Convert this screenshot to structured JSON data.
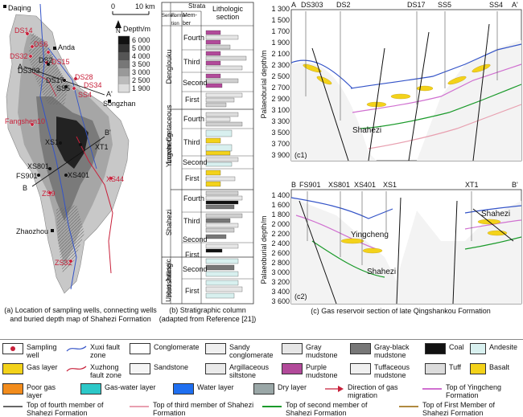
{
  "panel_a": {
    "wells": [
      "DS14",
      "DS6",
      "DS32",
      "DS2",
      "DS303",
      "DS15",
      "DS17",
      "DS28",
      "SS5",
      "DS34",
      "SS4",
      "Fangshen10",
      "XS1",
      "XT1",
      "XS801",
      "FS901",
      "XS401",
      "XS44",
      "ZS9",
      "ZS32"
    ],
    "towns": [
      "Daqing",
      "Anda",
      "Songzhan",
      "Zhaozhou"
    ],
    "section_ends": [
      "A",
      "A'",
      "B",
      "B'"
    ],
    "scale": {
      "zero": "0",
      "ten": "10 km"
    },
    "depth_legend": {
      "title": "Depth/m",
      "values": [
        "6 000",
        "5 000",
        "4 000",
        "3 500",
        "3 000",
        "2 500",
        "1 900"
      ]
    },
    "north_arrow": "N",
    "caption": "(a) Location of sampling wells, connecting wells and buried depth map of Shahezi Formation"
  },
  "panel_b": {
    "headers": {
      "strata": "Strata",
      "series": "Series",
      "formation": "Forma-tion",
      "member": "Mem-ber",
      "section": "Lithologic section"
    },
    "series": [
      "Lower Cretaceous",
      "Upper Jurassic"
    ],
    "formations": [
      "Denglouku",
      "Yingcheng",
      "Shahezi",
      "Huoshiling"
    ],
    "members": [
      "Fourth",
      "Third",
      "Second",
      "First",
      "Fourth",
      "Third",
      "Second",
      "First",
      "Fourth",
      "Third",
      "Second",
      "First",
      "Second",
      "First"
    ],
    "caption": "(b) Stratigraphic column (adapted from Reference [21])"
  },
  "panel_c": {
    "c1": {
      "wells": [
        "A",
        "DS303",
        "DS2",
        "DS17",
        "SS5",
        "SS4",
        "A'"
      ],
      "ylabel": "Palaeoburial depth/m",
      "yticks": [
        "1 300",
        "1 500",
        "1 700",
        "1 900",
        "2 100",
        "2 300",
        "2 500",
        "2 700",
        "2 900",
        "3 100",
        "3 300",
        "3 500",
        "3 700",
        "3 900"
      ],
      "label": "Shahezi",
      "tag": "(c1)"
    },
    "c2": {
      "wells": [
        "B",
        "FS901",
        "XS801",
        "XS401",
        "XS1",
        "XT1",
        "B'"
      ],
      "ylabel": "Palaeoburial depth/m",
      "yticks": [
        "1 400",
        "1 600",
        "1 800",
        "2 000",
        "2 200",
        "2 400",
        "2 600",
        "2 800",
        "3 000",
        "3 200",
        "3 400",
        "3 600"
      ],
      "labels": [
        "Shahezi",
        "Yingcheng",
        "Shahezi"
      ],
      "tag": "(c2)"
    },
    "caption": "(c) Gas reservoir section of late Qingshankou Formation"
  },
  "legend": {
    "items": [
      {
        "label": "Sampling well"
      },
      {
        "label": "Xuxi fault zone"
      },
      {
        "label": "Conglomerate"
      },
      {
        "label": "Sandy conglomerate"
      },
      {
        "label": "Gray mudstone"
      },
      {
        "label": "Gray-black mudstone"
      },
      {
        "label": "Coal"
      },
      {
        "label": "Andesite"
      },
      {
        "label": "Gas layer"
      },
      {
        "label": "Xuzhong fault zone"
      },
      {
        "label": "Sandstone"
      },
      {
        "label": "Argillaceous siltstone"
      },
      {
        "label": "Purple mudstone"
      },
      {
        "label": "Tuffaceous mudstone"
      },
      {
        "label": "Tuff"
      },
      {
        "label": "Basalt"
      },
      {
        "label": "Poor gas layer"
      },
      {
        "label": "Gas-water layer"
      },
      {
        "label": "Water layer"
      },
      {
        "label": "Dry layer"
      },
      {
        "label": "Direction of gas migration"
      },
      {
        "label": "Top of Yingcheng Formation"
      },
      {
        "label": "Top of fourth member of Shahezi Formation"
      },
      {
        "label": "Top of third member of Shahezi Formation"
      },
      {
        "label": "Top of second member of Shahezi Formation"
      },
      {
        "label": "Top of First Member of Shahezi Formation"
      }
    ],
    "colors": {
      "gas": "#f3d21a",
      "poor_gas": "#f28c1c",
      "gas_water": "#2cc8c8",
      "water": "#1f6ff0",
      "dry": "#9aa7a7",
      "fault_xuxi": "#3454c8",
      "fault_xuzhong": "#c8203a",
      "top_yingcheng": "#d070d0",
      "top_4th": "#333333",
      "top_3rd": "#e8a0b0",
      "top_2nd": "#1a9a2a",
      "top_1st": "#b08a40"
    }
  }
}
